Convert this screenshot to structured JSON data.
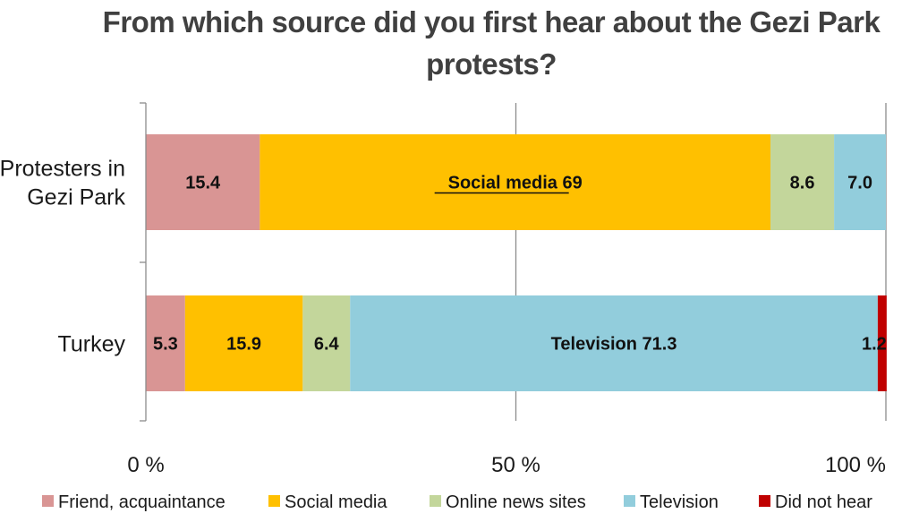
{
  "chart_data": {
    "type": "bar",
    "orientation": "horizontal",
    "stacked": true,
    "title_lines": [
      "From which source did you first hear about the Gezi Park",
      "protests?"
    ],
    "categories": [
      "Protesters in Gezi Park",
      "Turkey"
    ],
    "category_label_lines": [
      [
        "Protesters in",
        "Gezi Park"
      ],
      [
        "Turkey"
      ]
    ],
    "series": [
      {
        "name": "Friend, acquaintance",
        "color": "#D99594",
        "values": [
          15.4,
          5.3
        ],
        "labels": [
          "15.4",
          "5.3"
        ]
      },
      {
        "name": "Social media",
        "color": "#FFC000",
        "values": [
          69,
          15.9
        ],
        "labels": [
          "Social media 69",
          "15.9"
        ]
      },
      {
        "name": "Online news sites",
        "color": "#C3D69B",
        "values": [
          8.6,
          6.4
        ],
        "labels": [
          "8.6",
          "6.4"
        ]
      },
      {
        "name": "Television",
        "color": "#92CDDC",
        "values": [
          7.0,
          71.3
        ],
        "labels": [
          "7.0",
          "Television 71.3"
        ]
      },
      {
        "name": "Did not hear",
        "color": "#C00000",
        "values": [
          0,
          1.2
        ],
        "labels": [
          "",
          "1.2"
        ]
      }
    ],
    "xlim": [
      0,
      100
    ],
    "xticks": [
      0,
      50,
      100
    ],
    "xtick_labels": [
      "0 %",
      "50 %",
      "100 %"
    ],
    "grid": true,
    "legend_position": "bottom"
  }
}
